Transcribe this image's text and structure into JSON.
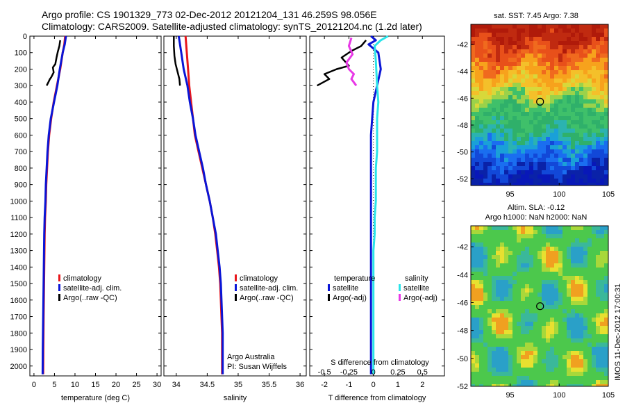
{
  "header": {
    "line1": "Argo profile: CS 1901329_773 02-Dec-2012 20121204_131 46.259S 98.056E",
    "line2": "Climatology: CARS2009. Satellite-adjusted climatology: synTS_20121204.nc (1.2d later)"
  },
  "footer_vertical": "IMOS 11-Dec-2012 17:00:31",
  "colors": {
    "red": "#e8161b",
    "blue": "#0a15d6",
    "black": "#000000",
    "cyan": "#2ae4e9",
    "magenta": "#e838e6"
  },
  "chart_data": [
    {
      "type": "line",
      "xlabel": "temperature (deg C)",
      "xlim": [
        -1,
        31
      ],
      "ylim": [
        2060,
        0
      ],
      "xticks": [
        "0",
        "5",
        "10",
        "15",
        "20",
        "25",
        "30"
      ],
      "yticks": [
        "0",
        "100",
        "200",
        "300",
        "400",
        "500",
        "600",
        "700",
        "800",
        "900",
        "1000",
        "1100",
        "1200",
        "1300",
        "1400",
        "1500",
        "1600",
        "1700",
        "1800",
        "1900",
        "2000"
      ],
      "legend": [
        "climatology",
        "satellite-adj. clim.",
        "Argo(..raw -QC)"
      ],
      "series": [
        {
          "name": "climatology",
          "color": "red",
          "x": [
            7.6,
            7.4,
            7.0,
            6.4,
            5.6,
            4.8,
            4.2,
            3.7,
            3.4,
            3.2,
            3.0,
            2.9,
            2.7,
            2.6,
            2.55,
            2.5,
            2.45,
            2.4,
            2.35,
            2.32,
            2.28,
            2.25
          ],
          "y": [
            0,
            50,
            100,
            200,
            300,
            400,
            500,
            600,
            700,
            800,
            900,
            1000,
            1100,
            1200,
            1300,
            1400,
            1500,
            1600,
            1700,
            1800,
            1900,
            2050
          ]
        },
        {
          "name": "satellite-adj. clim.",
          "color": "blue",
          "x": [
            7.8,
            7.5,
            7.0,
            6.3,
            5.7,
            4.9,
            4.1,
            3.6,
            3.3,
            3.1,
            2.9,
            2.8,
            2.6,
            2.5,
            2.45,
            2.4,
            2.35,
            2.3,
            2.25,
            2.2,
            2.15,
            2.12
          ],
          "y": [
            0,
            50,
            100,
            200,
            300,
            400,
            500,
            600,
            700,
            800,
            900,
            1000,
            1100,
            1200,
            1300,
            1400,
            1500,
            1600,
            1700,
            1800,
            1900,
            2050
          ]
        },
        {
          "name": "Argo(..raw -QC)",
          "color": "black",
          "x": [
            6.4,
            6.2,
            5.8,
            5.5,
            5.2,
            4.9,
            4.6,
            4.8,
            4.2,
            3.9,
            3.5,
            3.1
          ],
          "y": [
            25,
            60,
            95,
            130,
            170,
            180,
            190,
            220,
            250,
            260,
            280,
            300
          ]
        }
      ]
    },
    {
      "type": "line",
      "xlabel": "salinity",
      "xlim": [
        33.8,
        36.1
      ],
      "ylim": [
        2060,
        0
      ],
      "xticks": [
        "34",
        "34.5",
        "35",
        "35.5",
        "36"
      ],
      "legend": [
        "climatology",
        "satellite-adj. clim.",
        "Argo(..raw -QC)"
      ],
      "annotation": [
        "Argo Australia",
        "PI: Susan Wijffels"
      ],
      "series": [
        {
          "name": "climatology",
          "color": "red",
          "x": [
            34.15,
            34.16,
            34.17,
            34.19,
            34.21,
            34.24,
            34.27,
            34.3,
            34.36,
            34.42,
            34.48,
            34.54,
            34.59,
            34.63,
            34.66,
            34.69,
            34.71,
            34.72,
            34.73,
            34.74,
            34.74,
            34.74
          ],
          "y": [
            0,
            50,
            100,
            200,
            300,
            400,
            500,
            600,
            700,
            800,
            900,
            1000,
            1100,
            1200,
            1300,
            1400,
            1500,
            1600,
            1700,
            1800,
            1900,
            2050
          ]
        },
        {
          "name": "satellite-adj. clim.",
          "color": "blue",
          "x": [
            34.04,
            34.06,
            34.08,
            34.12,
            34.18,
            34.22,
            34.27,
            34.31,
            34.37,
            34.43,
            34.48,
            34.54,
            34.59,
            34.64,
            34.67,
            34.7,
            34.72,
            34.73,
            34.74,
            34.75,
            34.75,
            34.75
          ],
          "y": [
            0,
            50,
            100,
            200,
            300,
            400,
            500,
            600,
            700,
            800,
            900,
            1000,
            1100,
            1200,
            1300,
            1400,
            1500,
            1600,
            1700,
            1800,
            1900,
            2050
          ]
        },
        {
          "name": "Argo(..raw -QC)",
          "color": "black",
          "x": [
            33.96,
            33.96,
            33.97,
            33.99,
            34.01,
            34.03,
            34.05,
            34.06
          ],
          "y": [
            0,
            60,
            120,
            170,
            200,
            230,
            260,
            300
          ]
        }
      ]
    },
    {
      "type": "line",
      "xlabel": "T difference from climatology",
      "xlabel2": "S difference from climatology",
      "xlim": [
        -2.6,
        2.9
      ],
      "ylim": [
        2060,
        0
      ],
      "xticks": [
        "-2",
        "-1",
        "0",
        "1",
        "2"
      ],
      "xticks2": [
        "-0.5",
        "-0.25",
        "0",
        "0.25",
        "0.5"
      ],
      "legend_temperature": [
        "temperature",
        "satellite",
        "Argo(-adj)"
      ],
      "legend_salinity": [
        "salinity",
        "satellite",
        "Argo(-adj)"
      ],
      "series": [
        {
          "name": "satellite",
          "color": "blue",
          "x": [
            -0.1,
            0.1,
            -0.2,
            0.2,
            0.3,
            0.15,
            0.0,
            -0.05,
            -0.1,
            -0.1,
            -0.1,
            -0.1,
            -0.1,
            -0.1,
            -0.1,
            -0.1,
            -0.1,
            -0.1,
            -0.1,
            -0.1,
            -0.1,
            -0.1
          ],
          "y": [
            0,
            25,
            50,
            100,
            200,
            300,
            400,
            500,
            600,
            700,
            800,
            900,
            1000,
            1100,
            1200,
            1300,
            1400,
            1500,
            1600,
            1700,
            1800,
            2050
          ]
        },
        {
          "name": "satellite",
          "color": "cyan",
          "x": [
            0.6,
            0.3,
            0.05,
            0.1,
            0.15,
            0.2,
            0.15,
            0.15,
            0.15,
            0.1,
            0.1,
            0.1,
            0.05,
            0.05,
            0.0,
            0.0,
            0.0,
            0.0,
            0.0,
            0.0,
            0.0,
            0.0
          ],
          "y": [
            0,
            25,
            60,
            150,
            300,
            400,
            500,
            600,
            700,
            800,
            900,
            1000,
            1100,
            1200,
            1300,
            1400,
            1500,
            1600,
            1700,
            1800,
            1900,
            2050
          ]
        },
        {
          "name": "Argo(-adj)",
          "color": "black",
          "x": [
            -0.3,
            -0.5,
            -0.9,
            -1.3,
            -1.0,
            -1.5,
            -2.0,
            -1.8,
            -2.3
          ],
          "y": [
            25,
            60,
            90,
            130,
            180,
            200,
            230,
            260,
            300
          ]
        },
        {
          "name": "Argo(-adj)",
          "color": "magenta",
          "x": [
            -0.9,
            -1.0,
            -0.85,
            -1.1,
            -1.0,
            -0.8,
            -0.9,
            -0.7
          ],
          "y": [
            10,
            60,
            110,
            160,
            200,
            230,
            260,
            300
          ]
        }
      ]
    },
    {
      "type": "heatmap",
      "title": "sat. SST: 7.45 Argo: 7.38",
      "xlim": [
        91,
        105
      ],
      "ylim": [
        -52.5,
        -40.5
      ],
      "xticks": [
        "95",
        "100",
        "105"
      ],
      "yticks": [
        "-42",
        "-44",
        "-46",
        "-48",
        "-50",
        "-52"
      ],
      "marker": {
        "x": 98.05,
        "y": -46.26
      }
    },
    {
      "type": "heatmap",
      "title": "Altim. SLA: -0.12",
      "subtitle": "Argo h1000: NaN h2000: NaN",
      "xlim": [
        91,
        105
      ],
      "ylim": [
        -52,
        -40.5
      ],
      "xticks": [
        "95",
        "100",
        "105"
      ],
      "yticks": [
        "-42",
        "-44",
        "-46",
        "-48",
        "-50",
        "-52"
      ],
      "marker": {
        "x": 98.05,
        "y": -46.26
      }
    }
  ]
}
